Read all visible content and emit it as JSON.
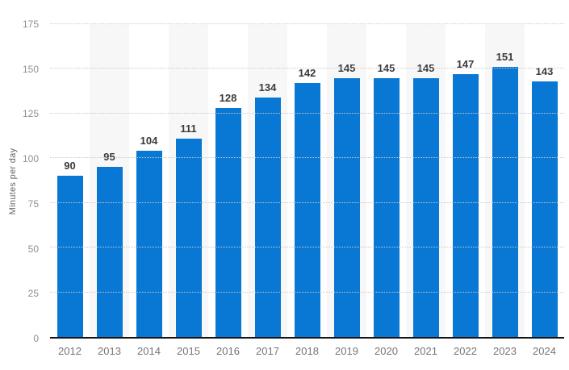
{
  "chart_data": {
    "type": "bar",
    "title": "",
    "categories": [
      "2012",
      "2013",
      "2014",
      "2015",
      "2016",
      "2017",
      "2018",
      "2019",
      "2020",
      "2021",
      "2022",
      "2023",
      "2024"
    ],
    "values": [
      90,
      95,
      104,
      111,
      128,
      134,
      142,
      145,
      145,
      145,
      147,
      151,
      143
    ],
    "xlabel": "",
    "ylabel": "Minutes per day",
    "ylim": [
      0,
      175
    ],
    "yticks": [
      0,
      25,
      50,
      75,
      100,
      125,
      150,
      175
    ],
    "grid": "horizontal dotted gridlines",
    "legend": "none",
    "column_bands": "alternating light-gray bands behind every second column starting with 2013",
    "colors": {
      "bar": "#0878d4",
      "band": "#f7f7f7",
      "value_label": "#3a3a3a",
      "axis_line": "#141414",
      "gridline": "#c9c9c9",
      "tick_label": "#8f8f8f",
      "x_label": "#757575",
      "background": "#ffffff"
    }
  }
}
